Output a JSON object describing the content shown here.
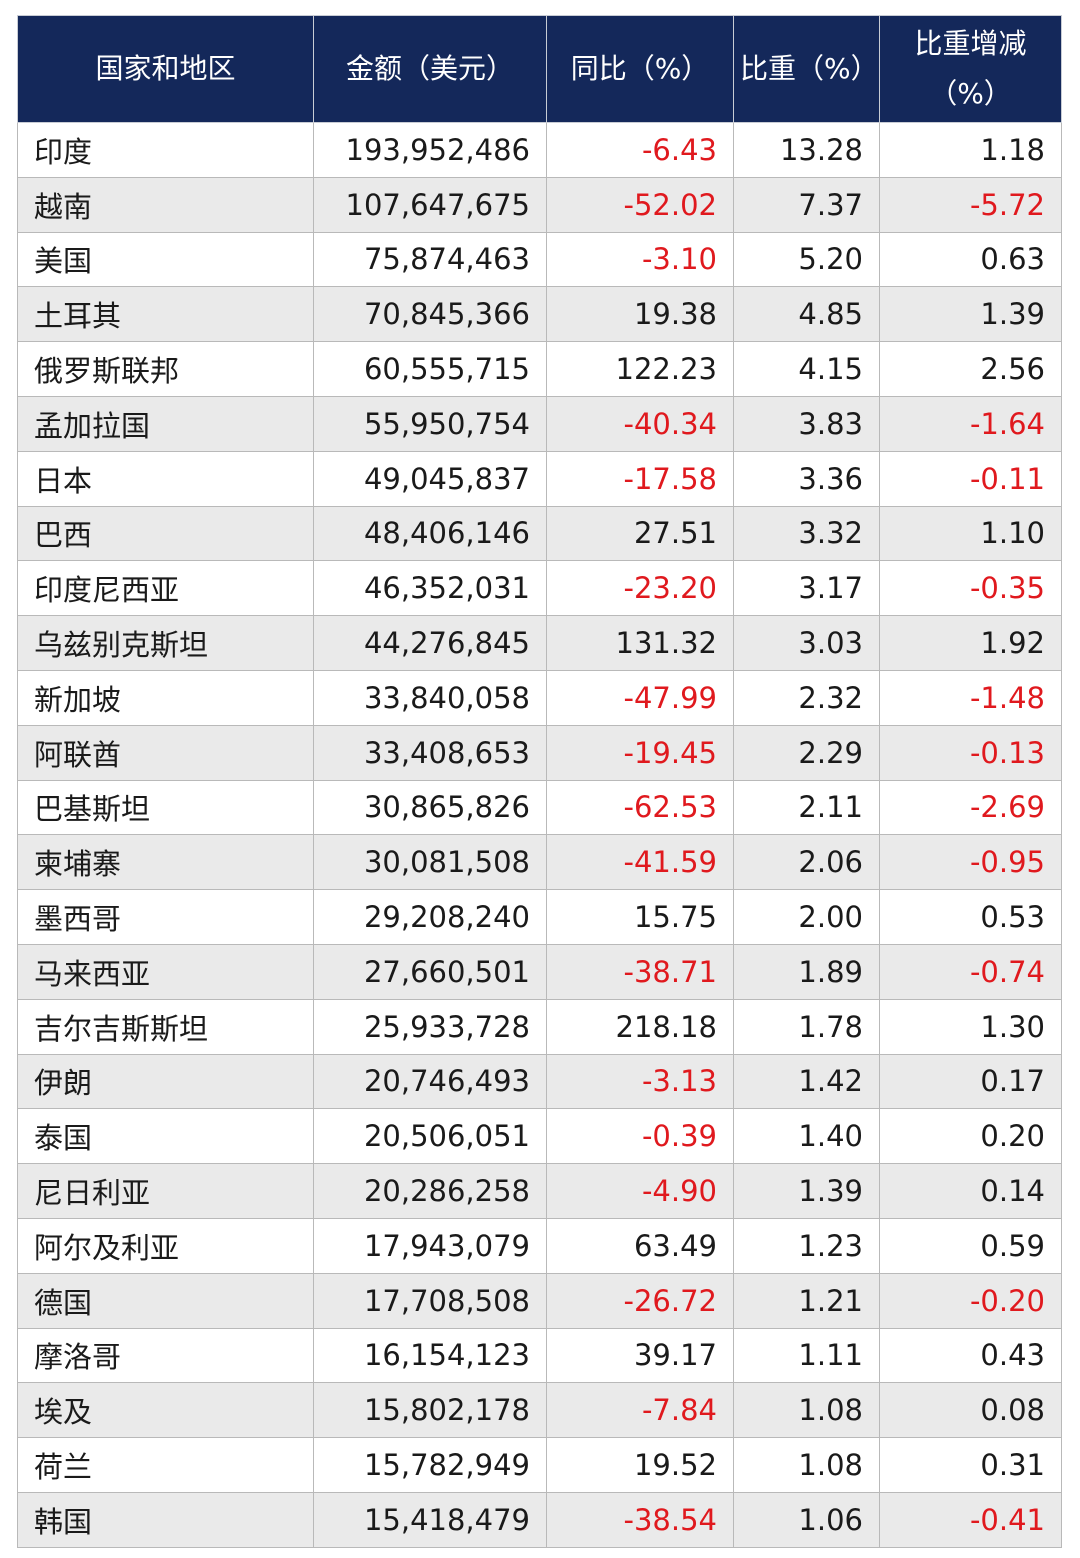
{
  "colors": {
    "header_bg": "#14285a",
    "negative": "#e0191e"
  },
  "headers": [
    "国家和地区",
    "金额（美元）",
    "同比（%）",
    "比重（%）",
    "比重增减（%）"
  ],
  "rows": [
    {
      "country": "印度",
      "amount": "193,952,486",
      "yoy": "-6.43",
      "share": "13.28",
      "share_change": "1.18"
    },
    {
      "country": "越南",
      "amount": "107,647,675",
      "yoy": "-52.02",
      "share": "7.37",
      "share_change": "-5.72"
    },
    {
      "country": "美国",
      "amount": "75,874,463",
      "yoy": "-3.10",
      "share": "5.20",
      "share_change": "0.63"
    },
    {
      "country": "土耳其",
      "amount": "70,845,366",
      "yoy": "19.38",
      "share": "4.85",
      "share_change": "1.39"
    },
    {
      "country": "俄罗斯联邦",
      "amount": "60,555,715",
      "yoy": "122.23",
      "share": "4.15",
      "share_change": "2.56"
    },
    {
      "country": "孟加拉国",
      "amount": "55,950,754",
      "yoy": "-40.34",
      "share": "3.83",
      "share_change": "-1.64"
    },
    {
      "country": "日本",
      "amount": "49,045,837",
      "yoy": "-17.58",
      "share": "3.36",
      "share_change": "-0.11"
    },
    {
      "country": "巴西",
      "amount": "48,406,146",
      "yoy": "27.51",
      "share": "3.32",
      "share_change": "1.10"
    },
    {
      "country": "印度尼西亚",
      "amount": "46,352,031",
      "yoy": "-23.20",
      "share": "3.17",
      "share_change": "-0.35"
    },
    {
      "country": "乌兹别克斯坦",
      "amount": "44,276,845",
      "yoy": "131.32",
      "share": "3.03",
      "share_change": "1.92"
    },
    {
      "country": "新加坡",
      "amount": "33,840,058",
      "yoy": "-47.99",
      "share": "2.32",
      "share_change": "-1.48"
    },
    {
      "country": "阿联酋",
      "amount": "33,408,653",
      "yoy": "-19.45",
      "share": "2.29",
      "share_change": "-0.13"
    },
    {
      "country": "巴基斯坦",
      "amount": "30,865,826",
      "yoy": "-62.53",
      "share": "2.11",
      "share_change": "-2.69"
    },
    {
      "country": "柬埔寨",
      "amount": "30,081,508",
      "yoy": "-41.59",
      "share": "2.06",
      "share_change": "-0.95"
    },
    {
      "country": "墨西哥",
      "amount": "29,208,240",
      "yoy": "15.75",
      "share": "2.00",
      "share_change": "0.53"
    },
    {
      "country": "马来西亚",
      "amount": "27,660,501",
      "yoy": "-38.71",
      "share": "1.89",
      "share_change": "-0.74"
    },
    {
      "country": "吉尔吉斯斯坦",
      "amount": "25,933,728",
      "yoy": "218.18",
      "share": "1.78",
      "share_change": "1.30"
    },
    {
      "country": "伊朗",
      "amount": "20,746,493",
      "yoy": "-3.13",
      "share": "1.42",
      "share_change": "0.17"
    },
    {
      "country": "泰国",
      "amount": "20,506,051",
      "yoy": "-0.39",
      "share": "1.40",
      "share_change": "0.20"
    },
    {
      "country": "尼日利亚",
      "amount": "20,286,258",
      "yoy": "-4.90",
      "share": "1.39",
      "share_change": "0.14"
    },
    {
      "country": "阿尔及利亚",
      "amount": "17,943,079",
      "yoy": "63.49",
      "share": "1.23",
      "share_change": "0.59"
    },
    {
      "country": "德国",
      "amount": "17,708,508",
      "yoy": "-26.72",
      "share": "1.21",
      "share_change": "-0.20"
    },
    {
      "country": "摩洛哥",
      "amount": "16,154,123",
      "yoy": "39.17",
      "share": "1.11",
      "share_change": "0.43"
    },
    {
      "country": "埃及",
      "amount": "15,802,178",
      "yoy": "-7.84",
      "share": "1.08",
      "share_change": "0.08"
    },
    {
      "country": "荷兰",
      "amount": "15,782,949",
      "yoy": "19.52",
      "share": "1.08",
      "share_change": "0.31"
    },
    {
      "country": "韩国",
      "amount": "15,418,479",
      "yoy": "-38.54",
      "share": "1.06",
      "share_change": "-0.41"
    }
  ]
}
